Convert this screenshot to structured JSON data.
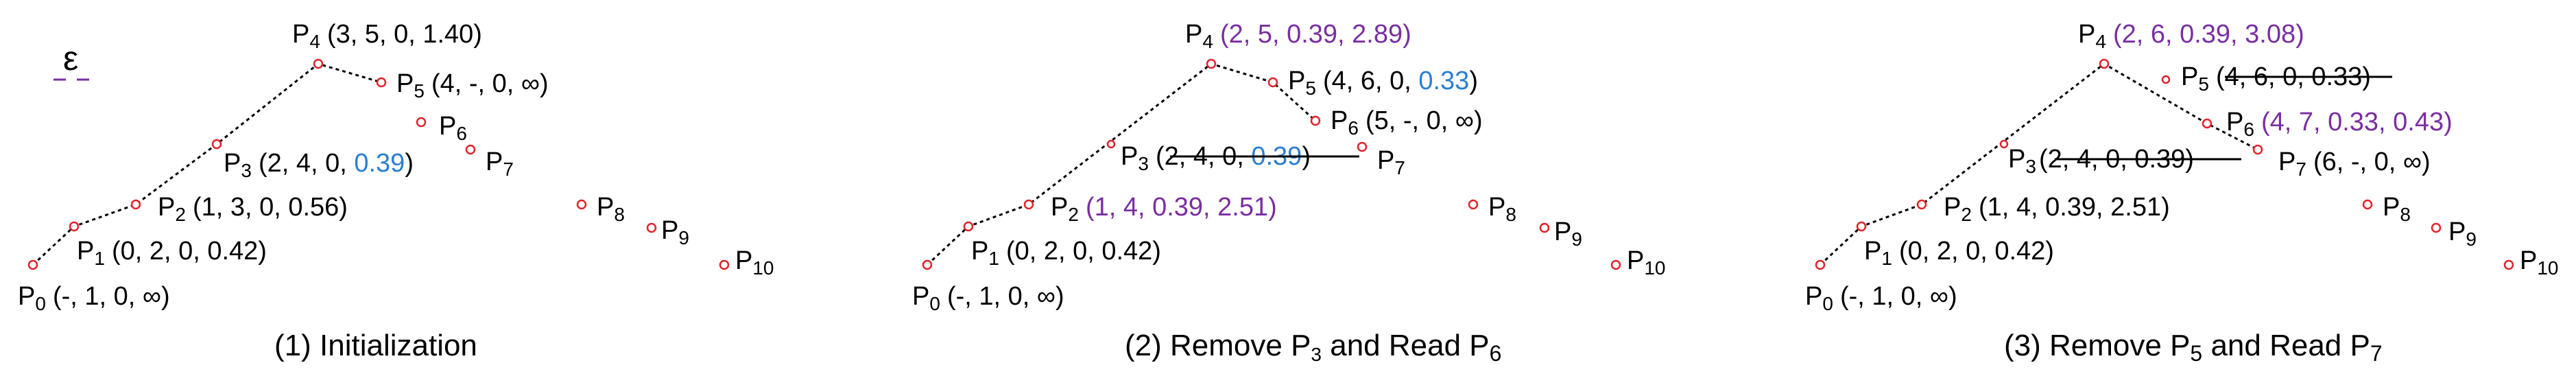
{
  "colors": {
    "point_stroke": "#e0242a",
    "text": "#000000",
    "updated": "#7a2ea0",
    "changed_value": "#2a7fd0",
    "epsilon_dash": "#7a2ea0"
  },
  "legend": {
    "symbol": "ε"
  },
  "panels": [
    {
      "caption": "(1) Initialization",
      "points": [
        {
          "label": "P",
          "sub": "0",
          "tuple": "(-, 1, 0, ∞)"
        },
        {
          "label": "P",
          "sub": "1",
          "tuple": "(0, 2, 0, 0.42)"
        },
        {
          "label": "P",
          "sub": "2",
          "tuple": "(1, 3, 0,  0.56)"
        },
        {
          "label": "P",
          "sub": "3",
          "tuple_plain": "(2, 4, 0, ",
          "tuple_highlight": "0.39",
          "tuple_end": ")"
        },
        {
          "label": "P",
          "sub": "4",
          "tuple": "(3, 5, 0, 1.40)"
        },
        {
          "label": "P",
          "sub": "5",
          "tuple": "(4, -, 0, ∞)"
        },
        {
          "label": "P",
          "sub": "6",
          "tuple": ""
        },
        {
          "label": "P",
          "sub": "7",
          "tuple": ""
        },
        {
          "label": "P",
          "sub": "8",
          "tuple": ""
        },
        {
          "label": "P",
          "sub": "9",
          "tuple": ""
        },
        {
          "label": "P",
          "sub": "10",
          "tuple": ""
        }
      ]
    },
    {
      "caption": "(2) Remove P",
      "caption_sub1": "3",
      "caption_mid": " and Read P",
      "caption_sub2": "6",
      "points": [
        {
          "label": "P",
          "sub": "0",
          "tuple": "(-, 1, 0, ∞)"
        },
        {
          "label": "P",
          "sub": "1",
          "tuple": "(0, 2, 0, 0.42)"
        },
        {
          "label": "P",
          "sub": "2",
          "tuple": "(1, 4, 0.39,  2.51)"
        },
        {
          "label": "P",
          "sub": "3",
          "tuple_plain": "(2, 4, 0, ",
          "tuple_highlight": "0.39",
          "tuple_end": ")"
        },
        {
          "label": "P",
          "sub": "4",
          "tuple": "(2, 5, 0.39, 2.89)"
        },
        {
          "label": "P",
          "sub": "5",
          "tuple_plain": "(4, 6, 0, ",
          "tuple_highlight": "0.33",
          "tuple_end": ")"
        },
        {
          "label": "P",
          "sub": "6",
          "tuple": "(5, -, 0, ∞)"
        },
        {
          "label": "P",
          "sub": "7",
          "tuple": ""
        },
        {
          "label": "P",
          "sub": "8",
          "tuple": ""
        },
        {
          "label": "P",
          "sub": "9",
          "tuple": ""
        },
        {
          "label": "P",
          "sub": "10",
          "tuple": ""
        }
      ]
    },
    {
      "caption": "(3) Remove P",
      "caption_sub1": "5",
      "caption_mid": " and Read P",
      "caption_sub2": "7",
      "points": [
        {
          "label": "P",
          "sub": "0",
          "tuple": "(-, 1, 0, ∞)"
        },
        {
          "label": "P",
          "sub": "1",
          "tuple": "(0, 2, 0, 0.42)"
        },
        {
          "label": "P",
          "sub": "2",
          "tuple": "(1, 4, 0.39,  2.51)"
        },
        {
          "label": "P",
          "sub": "3",
          "tuple": "(2, 4, 0, 0.39)"
        },
        {
          "label": "P",
          "sub": "4",
          "tuple": "(2, 6, 0.39, 3.08)"
        },
        {
          "label": "P",
          "sub": "5",
          "tuple": "(4, 6, 0, 0.33)"
        },
        {
          "label": "P",
          "sub": "6",
          "tuple": "(4, 7, 0.33, 0.43)"
        },
        {
          "label": "P",
          "sub": "7",
          "tuple": "(6, -, 0, ∞)"
        },
        {
          "label": "P",
          "sub": "8",
          "tuple": ""
        },
        {
          "label": "P",
          "sub": "9",
          "tuple": ""
        },
        {
          "label": "P",
          "sub": "10",
          "tuple": ""
        }
      ]
    }
  ]
}
